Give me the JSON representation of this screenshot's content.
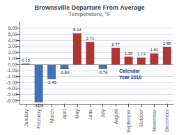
{
  "chart_data": {
    "type": "bar",
    "title": "Brownsville Departure From Average",
    "subtitle": "Temperature, °F",
    "categories": [
      "January",
      "February",
      "March",
      "April",
      "May",
      "June",
      "July",
      "August",
      "September",
      "October",
      "November",
      "December"
    ],
    "values": [
      0.15,
      -6.28,
      -2.43,
      -0.8,
      5.14,
      3.71,
      -0.76,
      2.77,
      1.3,
      1.13,
      1.81,
      2.89
    ],
    "value_labels": [
      "0.15",
      "-6.28",
      "-2.43",
      "-0.80",
      "5.14",
      "3.71",
      "-0.76",
      "2.77",
      "1.30",
      "1.13",
      "1.81",
      "2.89"
    ],
    "colors": [
      "#b03535",
      "#4070bb",
      "#4070bb",
      "#4070bb",
      "#b03535",
      "#b03535",
      "#4070bb",
      "#b03535",
      "#b03535",
      "#b03535",
      "#b03535",
      "#b03535"
    ],
    "ylim": [
      -6.5,
      7.0
    ],
    "yticks": [
      {
        "value": -6.0,
        "label": "-6.00"
      },
      {
        "value": -5.0,
        "label": "-5.00"
      },
      {
        "value": -4.0,
        "label": "-4.00"
      },
      {
        "value": -3.0,
        "label": "-3.00"
      },
      {
        "value": -2.0,
        "label": "-2.00"
      },
      {
        "value": -1.0,
        "label": "-1.00"
      },
      {
        "value": 0.0,
        "label": "0.00"
      },
      {
        "value": 1.0,
        "label": "1.00"
      },
      {
        "value": 2.0,
        "label": "2.00"
      },
      {
        "value": 3.0,
        "label": "3.00"
      },
      {
        "value": 4.0,
        "label": "4.00"
      },
      {
        "value": 5.0,
        "label": "5.00"
      },
      {
        "value": 6.0,
        "label": "6.00"
      }
    ],
    "annotations": [
      "Calendar\nYear 2010"
    ],
    "grid": true,
    "data_labels": true
  }
}
